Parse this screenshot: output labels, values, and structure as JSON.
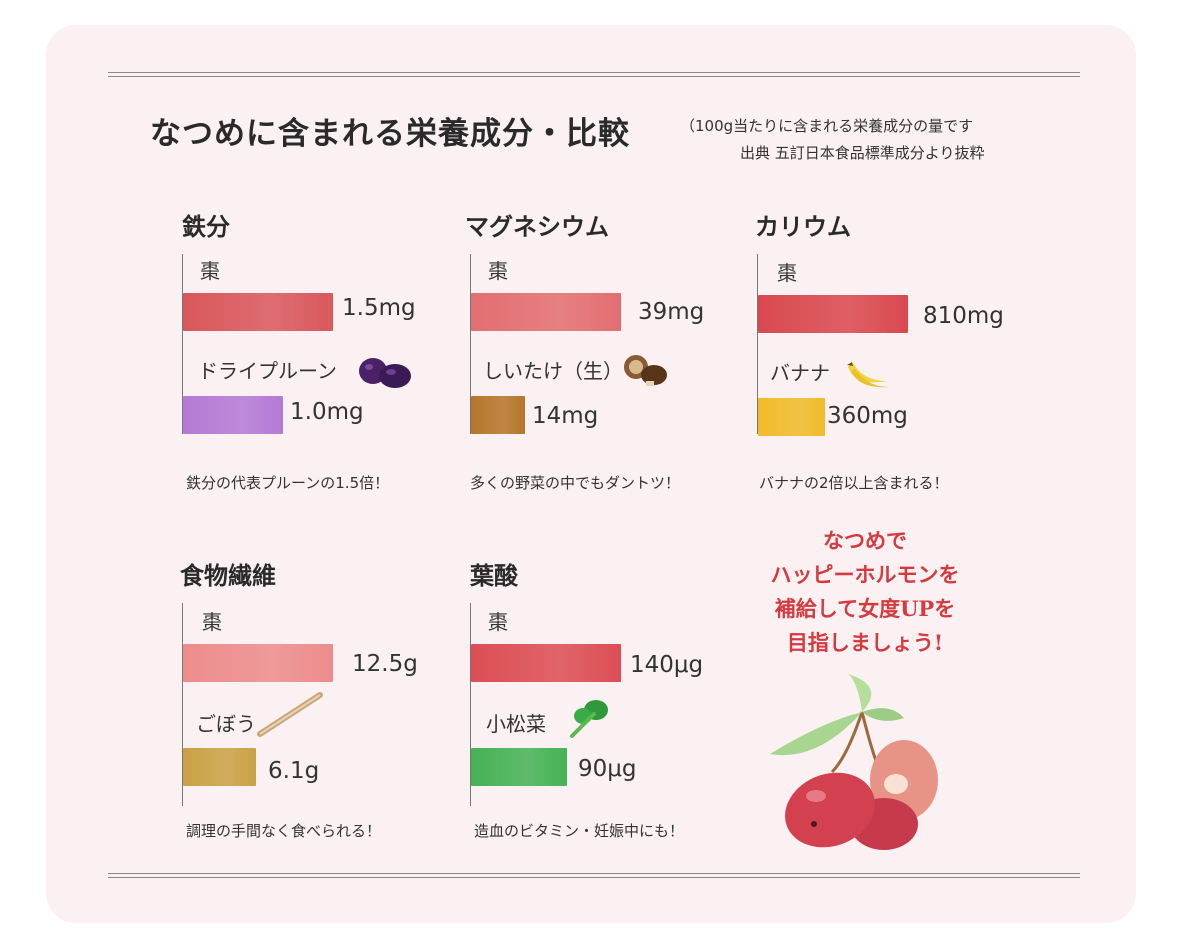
{
  "title": "なつめに含まれる栄養成分・比較",
  "note_line1": "（100g当たりに含まれる栄養成分の量です",
  "note_line2": "出典 五訂日本食品標準成分より抜粋",
  "slogan": [
    "なつめで",
    "ハッピーホルモンを",
    "補給して女度UPを",
    "目指しましょう!"
  ],
  "chart_data": [
    {
      "type": "bar",
      "title": "鉄分",
      "categories": [
        "棗",
        "ドライプルーン"
      ],
      "values": [
        1.5,
        1.0
      ],
      "value_labels": [
        "1.5mg",
        "1.0mg"
      ],
      "unit": "mg",
      "colors": [
        "#d9585c",
        "#b47ad6"
      ],
      "caption": "鉄分の代表プルーンの1.5倍！",
      "icons": [
        "prune-icon"
      ]
    },
    {
      "type": "bar",
      "title": "マグネシウム",
      "categories": [
        "棗",
        "しいたけ（生）"
      ],
      "values": [
        39,
        14
      ],
      "value_labels": [
        "39mg",
        "14mg"
      ],
      "unit": "mg",
      "colors": [
        "#e36e70",
        "#b5762a"
      ],
      "caption": "多くの野菜の中でもダントツ！",
      "icons": [
        "shiitake-icon"
      ]
    },
    {
      "type": "bar",
      "title": "カリウム",
      "categories": [
        "棗",
        "バナナ"
      ],
      "values": [
        810,
        360
      ],
      "value_labels": [
        "810mg",
        "360mg"
      ],
      "unit": "mg",
      "colors": [
        "#d9494f",
        "#f0bb2a"
      ],
      "caption": "バナナの2倍以上含まれる！",
      "icons": [
        "banana-icon"
      ]
    },
    {
      "type": "bar",
      "title": "食物繊維",
      "categories": [
        "棗",
        "ごぼう"
      ],
      "values": [
        12.5,
        6.1
      ],
      "value_labels": [
        "12.5g",
        "6.1g"
      ],
      "unit": "g",
      "colors": [
        "#ed8c8c",
        "#caa245"
      ],
      "caption": "調理の手間なく食べられる！",
      "icons": [
        "burdock-icon"
      ]
    },
    {
      "type": "bar",
      "title": "葉酸",
      "categories": [
        "棗",
        "小松菜"
      ],
      "values": [
        140,
        90
      ],
      "value_labels": [
        "140μg",
        "90μg"
      ],
      "unit": "μg",
      "colors": [
        "#dc4e54",
        "#46b255"
      ],
      "caption": "造血のビタミン・妊娠中にも！",
      "icons": [
        "komatsuna-icon"
      ]
    }
  ]
}
